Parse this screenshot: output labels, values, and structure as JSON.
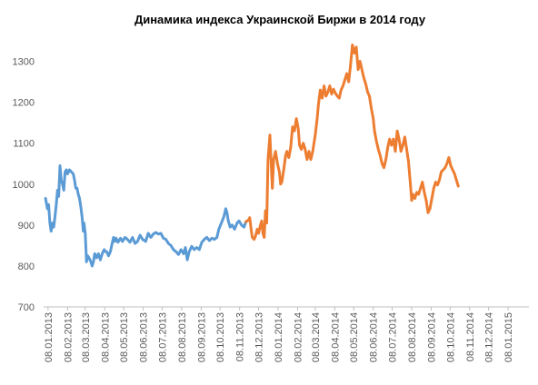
{
  "chart_data": {
    "type": "line",
    "title": "Динамика индекса Украинской Биржи в 2014 году",
    "xlabel": "",
    "ylabel": "",
    "ylim": [
      700,
      1350
    ],
    "yticks": [
      700,
      800,
      900,
      1000,
      1100,
      1200,
      1300
    ],
    "xrange": [
      "2013-01-01",
      "2015-02-10"
    ],
    "xticks": [
      {
        "date": "2013-01-08",
        "label": "08.01.2013"
      },
      {
        "date": "2013-02-08",
        "label": "08.02.2013"
      },
      {
        "date": "2013-03-08",
        "label": "08.03.2013"
      },
      {
        "date": "2013-04-08",
        "label": "08.04.2013"
      },
      {
        "date": "2013-05-08",
        "label": "08.05.2013"
      },
      {
        "date": "2013-06-08",
        "label": "08.06.2013"
      },
      {
        "date": "2013-07-08",
        "label": "08.07.2013"
      },
      {
        "date": "2013-08-08",
        "label": "08.08.2013"
      },
      {
        "date": "2013-09-08",
        "label": "08.09.2013"
      },
      {
        "date": "2013-10-08",
        "label": "08.10.2013"
      },
      {
        "date": "2013-11-08",
        "label": "08.11.2013"
      },
      {
        "date": "2013-12-08",
        "label": "08.12.2013"
      },
      {
        "date": "2014-01-08",
        "label": "08.01.2014"
      },
      {
        "date": "2014-02-08",
        "label": "08.02.2014"
      },
      {
        "date": "2014-03-08",
        "label": "08.03.2014"
      },
      {
        "date": "2014-04-08",
        "label": "08.04.2014"
      },
      {
        "date": "2014-05-08",
        "label": "08.05.2014"
      },
      {
        "date": "2014-06-08",
        "label": "08.06.2014"
      },
      {
        "date": "2014-07-08",
        "label": "08.07.2014"
      },
      {
        "date": "2014-08-08",
        "label": "08.08.2014"
      },
      {
        "date": "2014-09-08",
        "label": "08.09.2014"
      },
      {
        "date": "2014-10-08",
        "label": "08.10.2014"
      },
      {
        "date": "2014-11-08",
        "label": "08.11.2014"
      },
      {
        "date": "2014-12-08",
        "label": "08.12.2014"
      },
      {
        "date": "2015-01-08",
        "label": "08.01.2015"
      }
    ],
    "grid": false,
    "legend": "none",
    "series": [
      {
        "color": "#5b9bd5",
        "points": [
          [
            "2013-01-04",
            965
          ],
          [
            "2013-01-07",
            940
          ],
          [
            "2013-01-09",
            950
          ],
          [
            "2013-01-11",
            905
          ],
          [
            "2013-01-13",
            885
          ],
          [
            "2013-01-15",
            905
          ],
          [
            "2013-01-17",
            895
          ],
          [
            "2013-01-19",
            920
          ],
          [
            "2013-01-21",
            950
          ],
          [
            "2013-01-23",
            985
          ],
          [
            "2013-01-25",
            970
          ],
          [
            "2013-01-27",
            1045
          ],
          [
            "2013-01-29",
            1010
          ],
          [
            "2013-01-31",
            1000
          ],
          [
            "2013-02-02",
            985
          ],
          [
            "2013-02-04",
            1030
          ],
          [
            "2013-02-06",
            1035
          ],
          [
            "2013-02-08",
            1025
          ],
          [
            "2013-02-11",
            1035
          ],
          [
            "2013-02-14",
            1030
          ],
          [
            "2013-02-17",
            1025
          ],
          [
            "2013-02-19",
            1010
          ],
          [
            "2013-02-21",
            990
          ],
          [
            "2013-02-23",
            990
          ],
          [
            "2013-02-25",
            975
          ],
          [
            "2013-02-27",
            965
          ],
          [
            "2013-03-01",
            945
          ],
          [
            "2013-03-03",
            920
          ],
          [
            "2013-03-05",
            885
          ],
          [
            "2013-03-06",
            905
          ],
          [
            "2013-03-08",
            880
          ],
          [
            "2013-03-10",
            810
          ],
          [
            "2013-03-12",
            825
          ],
          [
            "2013-03-14",
            820
          ],
          [
            "2013-03-17",
            810
          ],
          [
            "2013-03-19",
            800
          ],
          [
            "2013-03-21",
            810
          ],
          [
            "2013-03-23",
            830
          ],
          [
            "2013-03-26",
            820
          ],
          [
            "2013-03-29",
            830
          ],
          [
            "2013-04-01",
            815
          ],
          [
            "2013-04-04",
            830
          ],
          [
            "2013-04-07",
            840
          ],
          [
            "2013-04-09",
            835
          ],
          [
            "2013-04-11",
            835
          ],
          [
            "2013-04-14",
            825
          ],
          [
            "2013-04-17",
            835
          ],
          [
            "2013-04-19",
            850
          ],
          [
            "2013-04-22",
            870
          ],
          [
            "2013-04-24",
            860
          ],
          [
            "2013-04-26",
            868
          ],
          [
            "2013-04-29",
            858
          ],
          [
            "2013-05-03",
            868
          ],
          [
            "2013-05-06",
            860
          ],
          [
            "2013-05-10",
            870
          ],
          [
            "2013-05-14",
            865
          ],
          [
            "2013-05-18",
            858
          ],
          [
            "2013-05-22",
            870
          ],
          [
            "2013-05-26",
            855
          ],
          [
            "2013-05-30",
            860
          ],
          [
            "2013-06-03",
            875
          ],
          [
            "2013-06-07",
            865
          ],
          [
            "2013-06-12",
            860
          ],
          [
            "2013-06-16",
            880
          ],
          [
            "2013-06-20",
            870
          ],
          [
            "2013-06-24",
            878
          ],
          [
            "2013-06-28",
            882
          ],
          [
            "2013-07-02",
            878
          ],
          [
            "2013-07-06",
            880
          ],
          [
            "2013-07-10",
            868
          ],
          [
            "2013-07-14",
            865
          ],
          [
            "2013-07-18",
            855
          ],
          [
            "2013-07-22",
            850
          ],
          [
            "2013-07-26",
            840
          ],
          [
            "2013-07-30",
            835
          ],
          [
            "2013-08-03",
            828
          ],
          [
            "2013-08-07",
            840
          ],
          [
            "2013-08-11",
            830
          ],
          [
            "2013-08-14",
            845
          ],
          [
            "2013-08-17",
            815
          ],
          [
            "2013-08-20",
            835
          ],
          [
            "2013-08-24",
            848
          ],
          [
            "2013-08-28",
            840
          ],
          [
            "2013-09-01",
            845
          ],
          [
            "2013-09-05",
            840
          ],
          [
            "2013-09-09",
            858
          ],
          [
            "2013-09-13",
            865
          ],
          [
            "2013-09-17",
            870
          ],
          [
            "2013-09-21",
            862
          ],
          [
            "2013-09-25",
            868
          ],
          [
            "2013-09-29",
            865
          ],
          [
            "2013-10-03",
            870
          ],
          [
            "2013-10-06",
            890
          ],
          [
            "2013-10-10",
            905
          ],
          [
            "2013-10-14",
            920
          ],
          [
            "2013-10-17",
            940
          ],
          [
            "2013-10-19",
            930
          ],
          [
            "2013-10-21",
            910
          ],
          [
            "2013-10-24",
            895
          ],
          [
            "2013-10-27",
            900
          ],
          [
            "2013-10-31",
            890
          ],
          [
            "2013-11-04",
            905
          ],
          [
            "2013-11-07",
            910
          ],
          [
            "2013-11-11",
            900
          ],
          [
            "2013-11-15",
            895
          ],
          [
            "2013-11-18",
            908
          ]
        ]
      },
      {
        "color": "#ed7d31",
        "points": [
          [
            "2013-11-18",
            908
          ],
          [
            "2013-11-22",
            912
          ],
          [
            "2013-11-24",
            918
          ],
          [
            "2013-11-26",
            892
          ],
          [
            "2013-11-28",
            870
          ],
          [
            "2013-12-01",
            865
          ],
          [
            "2013-12-03",
            872
          ],
          [
            "2013-12-06",
            890
          ],
          [
            "2013-12-08",
            880
          ],
          [
            "2013-12-11",
            900
          ],
          [
            "2013-12-13",
            910
          ],
          [
            "2013-12-15",
            880
          ],
          [
            "2013-12-17",
            870
          ],
          [
            "2013-12-19",
            935
          ],
          [
            "2013-12-21",
            905
          ],
          [
            "2013-12-23",
            1060
          ],
          [
            "2013-12-26",
            1120
          ],
          [
            "2013-12-28",
            1050
          ],
          [
            "2013-12-30",
            990
          ],
          [
            "2014-01-01",
            1060
          ],
          [
            "2014-01-04",
            1080
          ],
          [
            "2014-01-07",
            1050
          ],
          [
            "2014-01-10",
            1030
          ],
          [
            "2014-01-12",
            1000
          ],
          [
            "2014-01-14",
            1005
          ],
          [
            "2014-01-17",
            1035
          ],
          [
            "2014-01-20",
            1070
          ],
          [
            "2014-01-22",
            1080
          ],
          [
            "2014-01-25",
            1065
          ],
          [
            "2014-01-28",
            1090
          ],
          [
            "2014-01-31",
            1140
          ],
          [
            "2014-02-03",
            1130
          ],
          [
            "2014-02-06",
            1160
          ],
          [
            "2014-02-09",
            1135
          ],
          [
            "2014-02-11",
            1095
          ],
          [
            "2014-02-14",
            1085
          ],
          [
            "2014-02-17",
            1100
          ],
          [
            "2014-02-20",
            1085
          ],
          [
            "2014-02-23",
            1060
          ],
          [
            "2014-02-26",
            1080
          ],
          [
            "2014-03-01",
            1060
          ],
          [
            "2014-03-04",
            1080
          ],
          [
            "2014-03-08",
            1120
          ],
          [
            "2014-03-11",
            1160
          ],
          [
            "2014-03-13",
            1195
          ],
          [
            "2014-03-16",
            1230
          ],
          [
            "2014-03-19",
            1210
          ],
          [
            "2014-03-22",
            1240
          ],
          [
            "2014-03-25",
            1215
          ],
          [
            "2014-03-28",
            1225
          ],
          [
            "2014-03-31",
            1240
          ],
          [
            "2014-04-03",
            1220
          ],
          [
            "2014-04-06",
            1232
          ],
          [
            "2014-04-09",
            1222
          ],
          [
            "2014-04-12",
            1215
          ],
          [
            "2014-04-15",
            1210
          ],
          [
            "2014-04-18",
            1230
          ],
          [
            "2014-04-21",
            1240
          ],
          [
            "2014-04-24",
            1255
          ],
          [
            "2014-04-27",
            1270
          ],
          [
            "2014-04-30",
            1250
          ],
          [
            "2014-05-03",
            1290
          ],
          [
            "2014-05-06",
            1340
          ],
          [
            "2014-05-09",
            1320
          ],
          [
            "2014-05-12",
            1335
          ],
          [
            "2014-05-15",
            1280
          ],
          [
            "2014-05-18",
            1300
          ],
          [
            "2014-05-21",
            1280
          ],
          [
            "2014-05-24",
            1260
          ],
          [
            "2014-05-27",
            1245
          ],
          [
            "2014-05-30",
            1225
          ],
          [
            "2014-06-02",
            1215
          ],
          [
            "2014-06-05",
            1185
          ],
          [
            "2014-06-08",
            1160
          ],
          [
            "2014-06-10",
            1130
          ],
          [
            "2014-06-13",
            1105
          ],
          [
            "2014-06-16",
            1085
          ],
          [
            "2014-06-19",
            1070
          ],
          [
            "2014-06-22",
            1050
          ],
          [
            "2014-06-25",
            1040
          ],
          [
            "2014-06-28",
            1060
          ],
          [
            "2014-07-01",
            1090
          ],
          [
            "2014-07-04",
            1110
          ],
          [
            "2014-07-07",
            1095
          ],
          [
            "2014-07-10",
            1110
          ],
          [
            "2014-07-13",
            1080
          ],
          [
            "2014-07-16",
            1130
          ],
          [
            "2014-07-19",
            1110
          ],
          [
            "2014-07-22",
            1080
          ],
          [
            "2014-07-25",
            1095
          ],
          [
            "2014-07-28",
            1115
          ],
          [
            "2014-07-31",
            1085
          ],
          [
            "2014-08-03",
            1055
          ],
          [
            "2014-08-06",
            1000
          ],
          [
            "2014-08-08",
            960
          ],
          [
            "2014-08-10",
            975
          ],
          [
            "2014-08-13",
            965
          ],
          [
            "2014-08-16",
            980
          ],
          [
            "2014-08-19",
            975
          ],
          [
            "2014-08-22",
            990
          ],
          [
            "2014-08-25",
            1005
          ],
          [
            "2014-08-28",
            980
          ],
          [
            "2014-08-31",
            960
          ],
          [
            "2014-09-03",
            930
          ],
          [
            "2014-09-06",
            940
          ],
          [
            "2014-09-09",
            965
          ],
          [
            "2014-09-12",
            990
          ],
          [
            "2014-09-15",
            1005
          ],
          [
            "2014-09-18",
            998
          ],
          [
            "2014-09-21",
            1010
          ],
          [
            "2014-09-24",
            1030
          ],
          [
            "2014-09-27",
            1035
          ],
          [
            "2014-09-30",
            1040
          ],
          [
            "2014-10-03",
            1050
          ],
          [
            "2014-10-06",
            1065
          ],
          [
            "2014-10-09",
            1045
          ],
          [
            "2014-10-12",
            1035
          ],
          [
            "2014-10-15",
            1025
          ],
          [
            "2014-10-18",
            1010
          ],
          [
            "2014-10-21",
            995
          ]
        ]
      }
    ]
  }
}
